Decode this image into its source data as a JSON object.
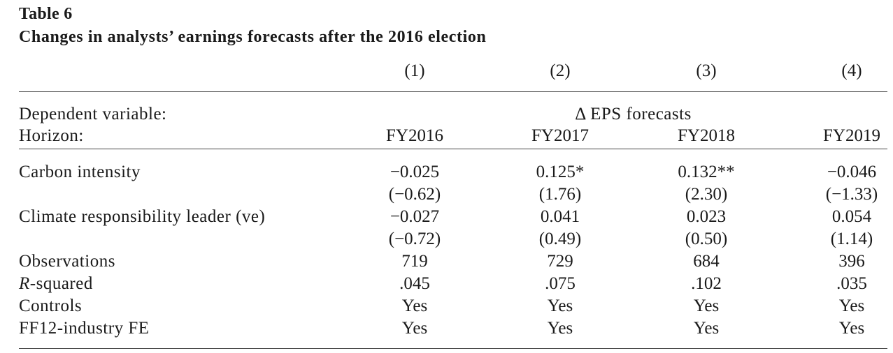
{
  "table": {
    "label": "Table 6",
    "title": "Changes in analysts’ earnings forecasts after the 2016 election",
    "column_numbers": [
      "(1)",
      "(2)",
      "(3)",
      "(4)"
    ],
    "dependent_variable": {
      "label": "Dependent variable:",
      "value": "Δ EPS forecasts"
    },
    "horizon": {
      "label": "Horizon:",
      "values": [
        "FY2016",
        "FY2017",
        "FY2018",
        "FY2019"
      ]
    },
    "rows": {
      "carbon_intensity": {
        "label": "Carbon intensity",
        "coef": [
          "−0.025",
          "0.125*",
          "0.132**",
          "−0.046"
        ],
        "tstat": [
          "(−0.62)",
          "(1.76)",
          "(2.30)",
          "(−1.33)"
        ]
      },
      "climate_leader": {
        "label": "Climate responsibility leader (ve)",
        "coef": [
          "−0.027",
          "0.041",
          "0.023",
          "0.054"
        ],
        "tstat": [
          "(−0.72)",
          "(0.49)",
          "(0.50)",
          "(1.14)"
        ]
      },
      "observations": {
        "label": "Observations",
        "values": [
          "719",
          "729",
          "684",
          "396"
        ]
      },
      "r_squared": {
        "label_italic": "R",
        "label_rest": "-squared",
        "values": [
          ".045",
          ".075",
          ".102",
          ".035"
        ]
      },
      "controls": {
        "label": "Controls",
        "values": [
          "Yes",
          "Yes",
          "Yes",
          "Yes"
        ]
      },
      "industry_fe": {
        "label": "FF12-industry FE",
        "values": [
          "Yes",
          "Yes",
          "Yes",
          "Yes"
        ]
      }
    }
  }
}
